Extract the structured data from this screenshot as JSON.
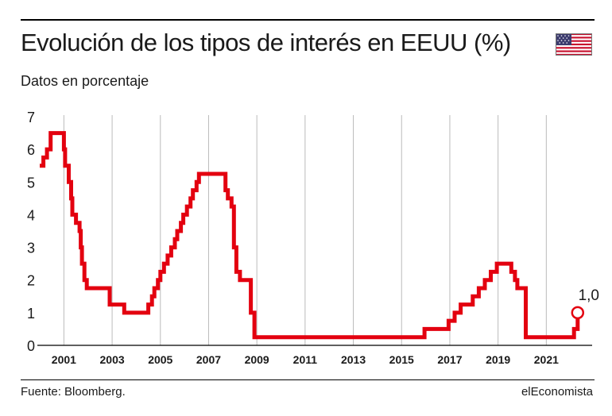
{
  "header": {
    "title": "Evolución de los tipos de interés en EEUU (%)",
    "subtitle": "Datos en porcentaje"
  },
  "footer": {
    "source": "Fuente: Bloomberg.",
    "brand": "elEconomista"
  },
  "flag_icon": "us-flag-icon",
  "colors": {
    "line": "#e3000f",
    "grid": "#bbbbbb",
    "axis": "#000000",
    "text": "#1a1a1a"
  },
  "chart_data": {
    "type": "line",
    "title": "Evolución de los tipos de interés en EEUU (%)",
    "subtitle": "Datos en porcentaje",
    "xlim": [
      1999.9,
      2022.9
    ],
    "ylim": [
      0,
      7
    ],
    "yticks": [
      0,
      1,
      2,
      3,
      4,
      5,
      6,
      7
    ],
    "xticks": [
      2001,
      2003,
      2005,
      2007,
      2009,
      2011,
      2013,
      2015,
      2017,
      2019,
      2021
    ],
    "grid": "vertical",
    "annotation": {
      "x": 2022.3,
      "y": 1.0,
      "label": "1,0"
    },
    "series": [
      {
        "step": true,
        "points": [
          [
            2000.0,
            5.5
          ],
          [
            2000.15,
            5.75
          ],
          [
            2000.3,
            6.0
          ],
          [
            2000.45,
            6.5
          ],
          [
            2001.0,
            6.0
          ],
          [
            2001.05,
            5.5
          ],
          [
            2001.2,
            5.0
          ],
          [
            2001.3,
            4.5
          ],
          [
            2001.35,
            4.0
          ],
          [
            2001.5,
            3.75
          ],
          [
            2001.65,
            3.5
          ],
          [
            2001.7,
            3.0
          ],
          [
            2001.75,
            2.5
          ],
          [
            2001.85,
            2.0
          ],
          [
            2001.95,
            1.75
          ],
          [
            2002.9,
            1.25
          ],
          [
            2003.5,
            1.0
          ],
          [
            2004.5,
            1.25
          ],
          [
            2004.65,
            1.5
          ],
          [
            2004.75,
            1.75
          ],
          [
            2004.9,
            2.0
          ],
          [
            2005.0,
            2.25
          ],
          [
            2005.15,
            2.5
          ],
          [
            2005.3,
            2.75
          ],
          [
            2005.45,
            3.0
          ],
          [
            2005.6,
            3.25
          ],
          [
            2005.7,
            3.5
          ],
          [
            2005.85,
            3.75
          ],
          [
            2005.95,
            4.0
          ],
          [
            2006.1,
            4.25
          ],
          [
            2006.25,
            4.5
          ],
          [
            2006.35,
            4.75
          ],
          [
            2006.5,
            5.0
          ],
          [
            2006.6,
            5.25
          ],
          [
            2007.7,
            4.75
          ],
          [
            2007.8,
            4.5
          ],
          [
            2007.95,
            4.25
          ],
          [
            2008.05,
            3.0
          ],
          [
            2008.15,
            2.25
          ],
          [
            2008.3,
            2.0
          ],
          [
            2008.75,
            1.0
          ],
          [
            2008.9,
            0.25
          ],
          [
            2015.95,
            0.5
          ],
          [
            2016.95,
            0.75
          ],
          [
            2017.2,
            1.0
          ],
          [
            2017.45,
            1.25
          ],
          [
            2017.95,
            1.5
          ],
          [
            2018.2,
            1.75
          ],
          [
            2018.45,
            2.0
          ],
          [
            2018.7,
            2.25
          ],
          [
            2018.95,
            2.5
          ],
          [
            2019.55,
            2.25
          ],
          [
            2019.7,
            2.0
          ],
          [
            2019.8,
            1.75
          ],
          [
            2020.15,
            0.25
          ],
          [
            2022.15,
            0.5
          ],
          [
            2022.3,
            1.0
          ]
        ]
      }
    ]
  }
}
